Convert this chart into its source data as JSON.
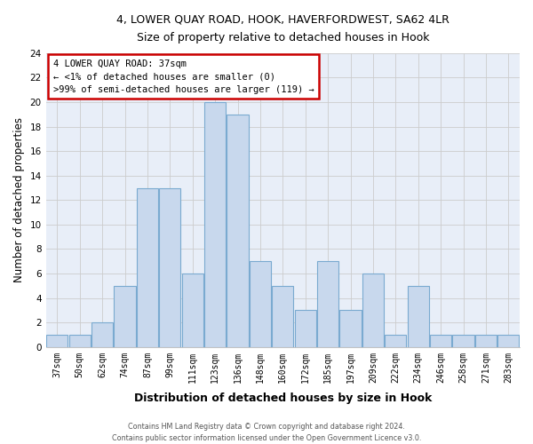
{
  "title1": "4, LOWER QUAY ROAD, HOOK, HAVERFORDWEST, SA62 4LR",
  "title2": "Size of property relative to detached houses in Hook",
  "xlabel": "Distribution of detached houses by size in Hook",
  "ylabel": "Number of detached properties",
  "footer1": "Contains HM Land Registry data © Crown copyright and database right 2024.",
  "footer2": "Contains public sector information licensed under the Open Government Licence v3.0.",
  "bin_labels": [
    "37sqm",
    "50sqm",
    "62sqm",
    "74sqm",
    "87sqm",
    "99sqm",
    "111sqm",
    "123sqm",
    "136sqm",
    "148sqm",
    "160sqm",
    "172sqm",
    "185sqm",
    "197sqm",
    "209sqm",
    "222sqm",
    "234sqm",
    "246sqm",
    "258sqm",
    "271sqm",
    "283sqm"
  ],
  "bar_heights": [
    1,
    1,
    2,
    5,
    13,
    13,
    6,
    20,
    19,
    7,
    5,
    3,
    7,
    3,
    6,
    1,
    5,
    1,
    1,
    1,
    1
  ],
  "bar_color": "#c8d8ed",
  "bar_edge_color": "#7aaad0",
  "ylim": [
    0,
    24
  ],
  "yticks": [
    0,
    2,
    4,
    6,
    8,
    10,
    12,
    14,
    16,
    18,
    20,
    22,
    24
  ],
  "annotation_title": "4 LOWER QUAY ROAD: 37sqm",
  "annotation_line2": "← <1% of detached houses are smaller (0)",
  "annotation_line3": ">99% of semi-detached houses are larger (119) →",
  "annotation_box_color": "#ffffff",
  "annotation_border_color": "#cc0000",
  "grid_color": "#cccccc",
  "bg_color": "#ffffff",
  "plot_bg_color": "#e8eef8"
}
